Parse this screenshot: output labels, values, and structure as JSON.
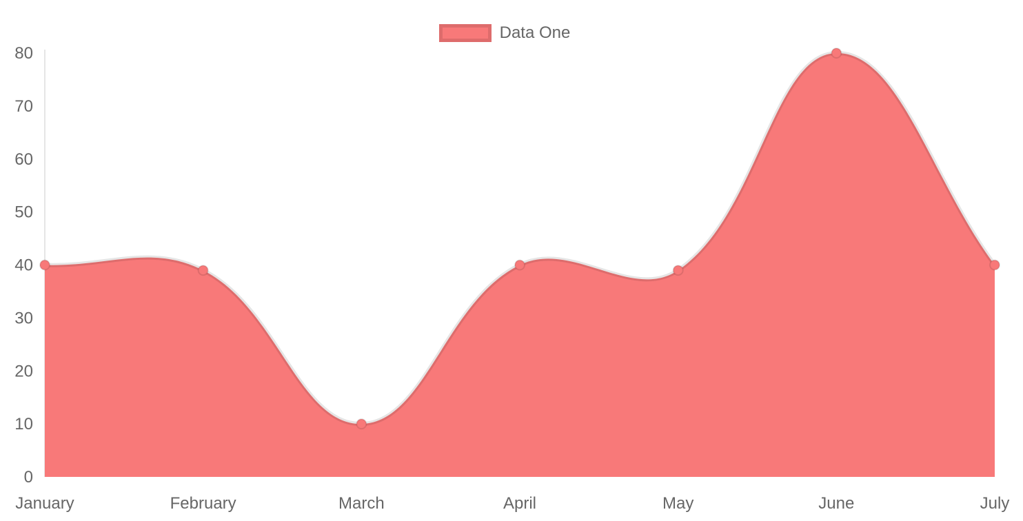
{
  "chart_data": {
    "type": "area",
    "title": "",
    "categories": [
      "January",
      "February",
      "March",
      "April",
      "May",
      "June",
      "July"
    ],
    "series": [
      {
        "name": "Data One",
        "values": [
          40,
          39,
          10,
          40,
          39,
          80,
          40
        ]
      }
    ],
    "xlabel": "",
    "ylabel": "",
    "ylim": [
      0,
      80
    ],
    "ytick_step": 10,
    "ytick_labels": [
      "0",
      "10",
      "20",
      "30",
      "40",
      "50",
      "60",
      "70",
      "80"
    ],
    "grid": false,
    "legend_position": "top",
    "line_tension": 0.4,
    "colors": {
      "area_fill": "#f87979",
      "line_stroke": "rgba(0,0,0,0.1)",
      "point_fill": "#f87979",
      "point_stroke": "rgba(0,0,0,0.1)",
      "axis_line": "rgba(0,0,0,0.1)",
      "tick_text": "#666666"
    }
  },
  "legend": {
    "label": "Data One"
  }
}
